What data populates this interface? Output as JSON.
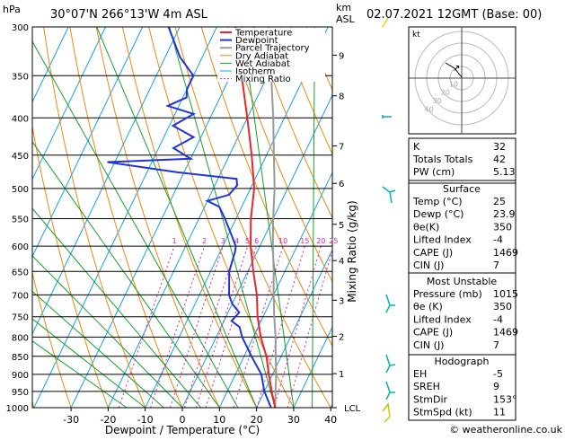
{
  "header": {
    "location": "30°07'N  266°13'W  4m  ASL",
    "datetime": "02.07.2021  12GMT  (Base: 00)",
    "hpa_label": "hPa",
    "km_label": "km",
    "asl_label": "ASL"
  },
  "colors": {
    "temperature": "#e8262a",
    "dewpoint": "#2233dd",
    "parcel": "#999999",
    "dry_adiabat": "#e88a12",
    "wet_adiabat": "#16a12a",
    "isotherm": "#1aa0e8",
    "mixing_ratio": "#dd22aa"
  },
  "chart_data": {
    "type": "skew-t",
    "xlabel": "Dewpoint / Temperature (°C)",
    "ylabel_right": "Mixing Ratio (g/kg)",
    "x_ticks": [
      "-30",
      "-20",
      "-10",
      "0",
      "10",
      "20",
      "30",
      "40"
    ],
    "pressure_levels": [
      "300",
      "350",
      "400",
      "450",
      "500",
      "550",
      "600",
      "650",
      "700",
      "750",
      "800",
      "850",
      "900",
      "950",
      "1000"
    ],
    "km_ticks": [
      {
        "label": "9",
        "p": 328
      },
      {
        "label": "8",
        "p": 373
      },
      {
        "label": "7",
        "p": 437
      },
      {
        "label": "6",
        "p": 492
      },
      {
        "label": "5",
        "p": 560
      },
      {
        "label": "4",
        "p": 628
      },
      {
        "label": "3",
        "p": 712
      },
      {
        "label": "2",
        "p": 798
      },
      {
        "label": "1",
        "p": 898
      },
      {
        "label": "LCL",
        "p": 1000
      }
    ],
    "mixing_ratio_labels": [
      "1",
      "2",
      "3",
      "4",
      "5",
      "6",
      "10",
      "15",
      "20",
      "25"
    ],
    "legend": [
      "Temperature",
      "Dewpoint",
      "Parcel Trajectory",
      "Dry Adiabat",
      "Wet Adiabat",
      "Isotherm",
      "Mixing Ratio"
    ],
    "legend_position": "top-left of plot",
    "temperature": [
      {
        "p": 1000,
        "t": 25
      },
      {
        "p": 950,
        "t": 22
      },
      {
        "p": 900,
        "t": 19
      },
      {
        "p": 850,
        "t": 16
      },
      {
        "p": 800,
        "t": 12
      },
      {
        "p": 750,
        "t": 8.5
      },
      {
        "p": 700,
        "t": 5.5
      },
      {
        "p": 650,
        "t": 1.5
      },
      {
        "p": 600,
        "t": -2.5
      },
      {
        "p": 550,
        "t": -6
      },
      {
        "p": 500,
        "t": -9
      },
      {
        "p": 450,
        "t": -14
      },
      {
        "p": 400,
        "t": -20
      },
      {
        "p": 350,
        "t": -27
      },
      {
        "p": 300,
        "t": -35
      }
    ],
    "dewpoint": [
      {
        "p": 1000,
        "t": 23.9
      },
      {
        "p": 950,
        "t": 20
      },
      {
        "p": 900,
        "t": 17
      },
      {
        "p": 870,
        "t": 14
      },
      {
        "p": 850,
        "t": 12
      },
      {
        "p": 800,
        "t": 7
      },
      {
        "p": 775,
        "t": 5
      },
      {
        "p": 760,
        "t": 2
      },
      {
        "p": 740,
        "t": 3
      },
      {
        "p": 720,
        "t": 0
      },
      {
        "p": 700,
        "t": -2
      },
      {
        "p": 650,
        "t": -5
      },
      {
        "p": 610,
        "t": -6
      },
      {
        "p": 600,
        "t": -6.5
      },
      {
        "p": 580,
        "t": -9
      },
      {
        "p": 550,
        "t": -13
      },
      {
        "p": 530,
        "t": -16
      },
      {
        "p": 520,
        "t": -20
      },
      {
        "p": 510,
        "t": -15
      },
      {
        "p": 495,
        "t": -14
      },
      {
        "p": 485,
        "t": -15
      },
      {
        "p": 475,
        "t": -32
      },
      {
        "p": 460,
        "t": -52
      },
      {
        "p": 455,
        "t": -30
      },
      {
        "p": 440,
        "t": -36
      },
      {
        "p": 425,
        "t": -32
      },
      {
        "p": 410,
        "t": -39
      },
      {
        "p": 395,
        "t": -35
      },
      {
        "p": 385,
        "t": -43
      },
      {
        "p": 375,
        "t": -39
      },
      {
        "p": 365,
        "t": -40
      },
      {
        "p": 350,
        "t": -40
      },
      {
        "p": 330,
        "t": -46
      },
      {
        "p": 300,
        "t": -53
      }
    ],
    "parcel": [
      {
        "p": 1000,
        "t": 25
      },
      {
        "p": 950,
        "t": 23
      },
      {
        "p": 900,
        "t": 21
      },
      {
        "p": 850,
        "t": 18.5
      },
      {
        "p": 800,
        "t": 16
      },
      {
        "p": 750,
        "t": 13
      },
      {
        "p": 700,
        "t": 10
      },
      {
        "p": 650,
        "t": 7
      },
      {
        "p": 600,
        "t": 3.5
      },
      {
        "p": 550,
        "t": 0
      },
      {
        "p": 500,
        "t": -3.5
      },
      {
        "p": 450,
        "t": -8
      },
      {
        "p": 400,
        "t": -13
      },
      {
        "p": 350,
        "t": -19
      },
      {
        "p": 300,
        "t": -26
      }
    ]
  },
  "hodograph": {
    "unit_label": "kt",
    "ring_labels": [
      "40",
      "30",
      "20",
      "10"
    ]
  },
  "indices": [
    {
      "label": "K",
      "value": "32"
    },
    {
      "label": "Totals Totals",
      "value": "42"
    },
    {
      "label": "PW (cm)",
      "value": "5.13"
    }
  ],
  "surface": {
    "title": "Surface",
    "rows": [
      {
        "label": "Temp (°C)",
        "value": "25"
      },
      {
        "label": "Dewp (°C)",
        "value": "23.9"
      },
      {
        "label": "θe(K)",
        "value": "350"
      },
      {
        "label": "Lifted Index",
        "value": "-4"
      },
      {
        "label": "CAPE (J)",
        "value": "1469"
      },
      {
        "label": "CIN (J)",
        "value": "7"
      }
    ]
  },
  "most_unstable": {
    "title": "Most Unstable",
    "rows": [
      {
        "label": "Pressure (mb)",
        "value": "1015"
      },
      {
        "label": "θe (K)",
        "value": "350"
      },
      {
        "label": "Lifted Index",
        "value": "-4"
      },
      {
        "label": "CAPE (J)",
        "value": "1469"
      },
      {
        "label": "CIN (J)",
        "value": "7"
      }
    ]
  },
  "hodograph_table": {
    "title": "Hodograph",
    "rows": [
      {
        "label": "EH",
        "value": "-5"
      },
      {
        "label": "SREH",
        "value": "9"
      },
      {
        "label": "StmDir",
        "value": "153°"
      },
      {
        "label": "StmSpd (kt)",
        "value": "11"
      }
    ]
  },
  "copyright": "© weatheronline.co.uk"
}
